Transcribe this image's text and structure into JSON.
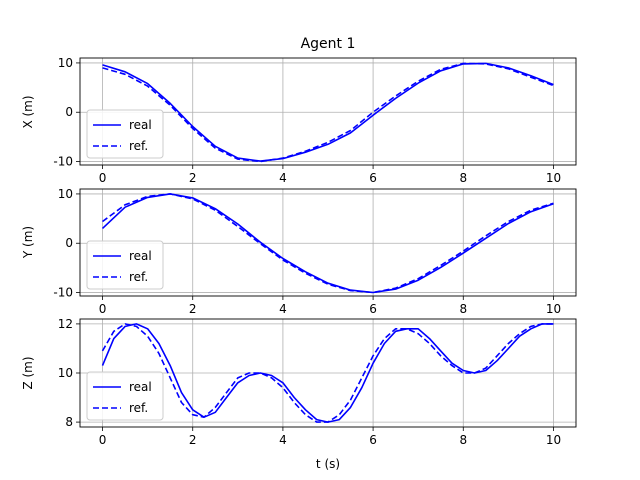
{
  "chart_data": {
    "type": "line",
    "title": "Agent 1",
    "xlabel": "t (s)",
    "xlim": [
      -0.5,
      10.5
    ],
    "xticks": [
      0,
      2,
      4,
      6,
      8,
      10
    ],
    "grid": true,
    "colors": {
      "line": "#0000ff",
      "grid": "#b0b0b0",
      "legend_border": "#cccccc"
    },
    "legend_placement": "lower-left",
    "subplots": [
      {
        "ylabel": "X (m)",
        "ylim": [
          -10.7,
          11.0
        ],
        "yticks": [
          -10,
          0,
          10
        ],
        "series": [
          {
            "name": "real",
            "style": "solid",
            "x": [
              0,
              0.5,
              1,
              1.5,
              2,
              2.5,
              3,
              3.5,
              4,
              4.5,
              5,
              5.5,
              6,
              6.5,
              7,
              7.5,
              8,
              8.5,
              9,
              9.5,
              10
            ],
            "y": [
              9.6,
              8.2,
              5.8,
              1.8,
              -2.9,
              -6.9,
              -9.3,
              -9.9,
              -9.4,
              -8.1,
              -6.5,
              -4.2,
              -0.6,
              2.8,
              5.9,
              8.4,
              9.8,
              9.9,
              9.0,
              7.4,
              5.6
            ]
          },
          {
            "name": "ref.",
            "style": "dashed",
            "x": [
              0,
              0.5,
              1,
              1.5,
              2,
              2.5,
              3,
              3.5,
              4,
              4.5,
              5,
              5.5,
              6,
              6.5,
              7,
              7.5,
              8,
              8.5,
              9,
              9.5,
              10
            ],
            "y": [
              9.0,
              7.7,
              5.3,
              1.4,
              -3.3,
              -7.3,
              -9.5,
              -10.0,
              -9.3,
              -7.9,
              -6.1,
              -3.7,
              0.0,
              3.3,
              6.3,
              8.7,
              9.9,
              9.8,
              8.8,
              7.1,
              5.4
            ]
          }
        ]
      },
      {
        "ylabel": "Y (m)",
        "ylim": [
          -10.7,
          11.0
        ],
        "yticks": [
          -10,
          0,
          10
        ],
        "series": [
          {
            "name": "real",
            "style": "solid",
            "x": [
              0,
              0.5,
              1,
              1.5,
              2,
              2.5,
              3,
              3.5,
              4,
              4.5,
              5,
              5.5,
              6,
              6.5,
              7,
              7.5,
              8,
              8.5,
              9,
              9.5,
              10
            ],
            "y": [
              3.0,
              7.3,
              9.3,
              10.0,
              9.2,
              7.0,
              3.9,
              0.2,
              -3.1,
              -5.8,
              -8.1,
              -9.5,
              -10.0,
              -9.3,
              -7.5,
              -4.9,
              -2.0,
              1.0,
              4.0,
              6.4,
              8.0
            ]
          },
          {
            "name": "ref.",
            "style": "dashed",
            "x": [
              0,
              0.5,
              1,
              1.5,
              2,
              2.5,
              3,
              3.5,
              4,
              4.5,
              5,
              5.5,
              6,
              6.5,
              7,
              7.5,
              8,
              8.5,
              9,
              9.5,
              10
            ],
            "y": [
              4.4,
              7.8,
              9.5,
              10.0,
              9.0,
              6.7,
              3.4,
              -0.1,
              -3.4,
              -6.1,
              -8.3,
              -9.6,
              -10.0,
              -9.1,
              -7.2,
              -4.5,
              -1.6,
              1.5,
              4.4,
              6.7,
              8.1
            ]
          }
        ]
      },
      {
        "ylabel": "Z (m)",
        "ylim": [
          7.8,
          12.2
        ],
        "yticks": [
          8,
          10,
          12
        ],
        "series": [
          {
            "name": "real",
            "style": "solid",
            "x": [
              0,
              0.25,
              0.5,
              0.75,
              1,
              1.25,
              1.5,
              1.75,
              2,
              2.25,
              2.5,
              2.75,
              3,
              3.25,
              3.5,
              3.75,
              4,
              4.25,
              4.5,
              4.75,
              5,
              5.25,
              5.5,
              5.75,
              6,
              6.25,
              6.5,
              6.75,
              7,
              7.25,
              7.5,
              7.75,
              8,
              8.25,
              8.5,
              8.75,
              9,
              9.25,
              9.5,
              9.75,
              10
            ],
            "y": [
              10.3,
              11.4,
              11.9,
              12.0,
              11.8,
              11.2,
              10.3,
              9.2,
              8.5,
              8.2,
              8.4,
              9.0,
              9.6,
              9.9,
              10.0,
              9.9,
              9.6,
              9.0,
              8.5,
              8.1,
              8.0,
              8.1,
              8.6,
              9.4,
              10.4,
              11.2,
              11.7,
              11.8,
              11.8,
              11.4,
              10.9,
              10.4,
              10.1,
              10.0,
              10.1,
              10.5,
              11.0,
              11.5,
              11.8,
              12.0,
              12.0
            ]
          },
          {
            "name": "ref.",
            "style": "dashed",
            "x": [
              0,
              0.25,
              0.5,
              0.75,
              1,
              1.25,
              1.5,
              1.75,
              2,
              2.25,
              2.5,
              2.75,
              3,
              3.25,
              3.5,
              3.75,
              4,
              4.25,
              4.5,
              4.75,
              5,
              5.25,
              5.5,
              5.75,
              6,
              6.25,
              6.5,
              6.75,
              7,
              7.25,
              7.5,
              7.75,
              8,
              8.25,
              8.5,
              8.75,
              9,
              9.25,
              9.5,
              9.75,
              10
            ],
            "y": [
              10.9,
              11.7,
              12.0,
              11.9,
              11.5,
              10.8,
              9.8,
              8.8,
              8.3,
              8.2,
              8.6,
              9.2,
              9.8,
              10.0,
              10.0,
              9.8,
              9.4,
              8.8,
              8.3,
              8.0,
              8.0,
              8.3,
              8.9,
              9.8,
              10.7,
              11.4,
              11.8,
              11.8,
              11.6,
              11.2,
              10.7,
              10.3,
              10.0,
              10.0,
              10.2,
              10.7,
              11.2,
              11.6,
              11.9,
              12.0,
              12.0
            ]
          }
        ]
      }
    ]
  }
}
